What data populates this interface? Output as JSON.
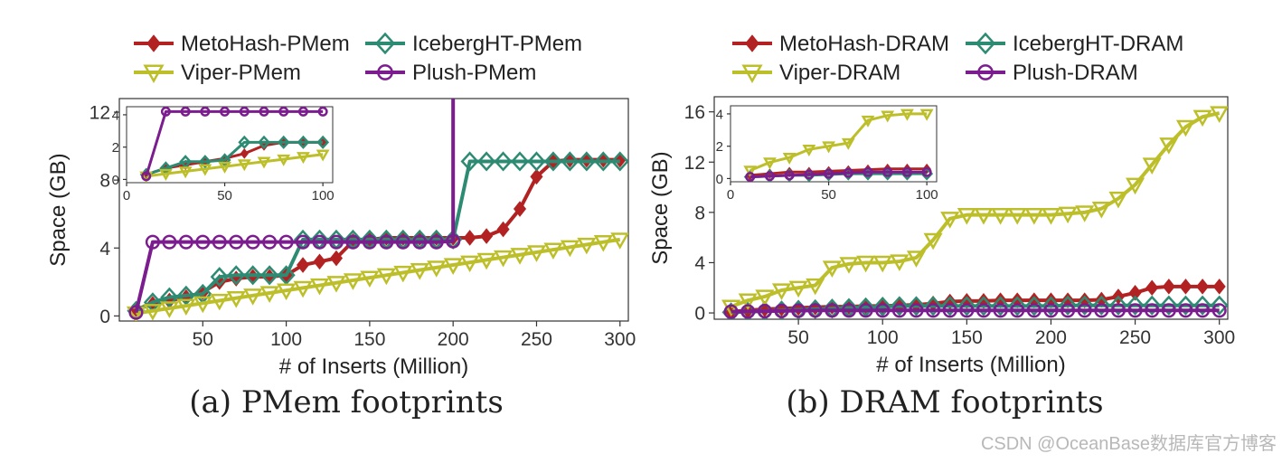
{
  "colors": {
    "meto": "#b22222",
    "iceberg": "#2e8b73",
    "viper": "#bdbf2a",
    "plush": "#7b1d8e"
  },
  "watermark": "CSDN @OceanBase数据库官方博客",
  "chart_data": [
    {
      "type": "line",
      "caption": "(a) PMem footprints",
      "xlabel": "# of Inserts (Million)",
      "ylabel": "Space (GB)",
      "xlim": [
        0,
        305
      ],
      "ylim": [
        -0.3,
        12.8
      ],
      "xticks": [
        50,
        100,
        150,
        200,
        250,
        300
      ],
      "yticks": [
        0,
        4,
        8,
        12
      ],
      "legend": "top",
      "x": [
        10,
        20,
        30,
        40,
        50,
        60,
        70,
        80,
        90,
        100,
        110,
        120,
        130,
        140,
        150,
        160,
        170,
        180,
        190,
        200,
        210,
        220,
        230,
        240,
        250,
        260,
        270,
        280,
        290,
        300
      ],
      "series": [
        {
          "name": "MetoHash-PMem",
          "marker": "diamond",
          "key": "meto",
          "values": [
            0.4,
            0.7,
            0.9,
            1.1,
            1.4,
            2.0,
            2.2,
            2.3,
            2.3,
            2.4,
            3.0,
            3.2,
            3.4,
            4.4,
            4.5,
            4.6,
            4.6,
            4.6,
            4.6,
            4.6,
            4.6,
            4.7,
            5.1,
            6.3,
            8.2,
            9.1,
            9.2,
            9.2,
            9.2,
            9.2
          ]
        },
        {
          "name": "IcebergHT-PMem",
          "marker": "diamond-open",
          "key": "iceberg",
          "values": [
            0.3,
            0.8,
            1.1,
            1.2,
            1.3,
            2.3,
            2.4,
            2.4,
            2.4,
            2.4,
            4.5,
            4.5,
            4.5,
            4.5,
            4.5,
            4.5,
            4.5,
            4.5,
            4.5,
            4.5,
            9.1,
            9.1,
            9.1,
            9.1,
            9.1,
            9.1,
            9.1,
            9.1,
            9.1,
            9.1
          ]
        },
        {
          "name": "Viper-PMem",
          "marker": "triangle-down",
          "key": "viper",
          "values": [
            0.15,
            0.3,
            0.45,
            0.6,
            0.75,
            0.9,
            1.05,
            1.2,
            1.35,
            1.5,
            1.65,
            1.8,
            1.95,
            2.1,
            2.25,
            2.4,
            2.55,
            2.7,
            2.85,
            3.0,
            3.15,
            3.3,
            3.45,
            3.6,
            3.75,
            3.9,
            4.05,
            4.2,
            4.35,
            4.5
          ]
        },
        {
          "name": "Plush-PMem",
          "marker": "circle-open",
          "key": "plush",
          "values": [
            0.2,
            4.35,
            4.35,
            4.35,
            4.35,
            4.35,
            4.35,
            4.35,
            4.35,
            4.35,
            4.35,
            4.35,
            4.35,
            4.35,
            4.35,
            4.35,
            4.35,
            4.35,
            4.35,
            4.4,
            null,
            null,
            null,
            null,
            null,
            null,
            null,
            null,
            null,
            null
          ],
          "spike": {
            "x": 200,
            "to": 13.5
          }
        }
      ],
      "inset": {
        "xlim": [
          0,
          105
        ],
        "ylim": [
          -0.2,
          4.5
        ],
        "xticks": [
          0,
          50,
          100
        ],
        "yticks": [
          0,
          2,
          4
        ],
        "x": [
          10,
          20,
          30,
          40,
          50,
          60,
          70,
          80,
          90,
          100
        ],
        "series": [
          {
            "key": "meto",
            "marker": "diamond",
            "values": [
              0.3,
              0.7,
              0.9,
              1.1,
              1.3,
              1.6,
              2.1,
              2.3,
              2.3,
              2.3
            ]
          },
          {
            "key": "iceberg",
            "marker": "diamond-open",
            "values": [
              0.3,
              0.7,
              1.1,
              1.1,
              1.2,
              2.3,
              2.3,
              2.3,
              2.3,
              2.3
            ]
          },
          {
            "key": "viper",
            "marker": "triangle-down",
            "values": [
              0.2,
              0.35,
              0.5,
              0.65,
              0.8,
              0.95,
              1.1,
              1.25,
              1.4,
              1.55
            ]
          },
          {
            "key": "plush",
            "marker": "circle-open",
            "values": [
              0.2,
              4.2,
              4.2,
              4.2,
              4.2,
              4.2,
              4.2,
              4.2,
              4.2,
              4.2
            ]
          }
        ]
      }
    },
    {
      "type": "line",
      "caption": "(b) DRAM footprints",
      "xlabel": "# of Inserts (Million)",
      "ylabel": "Space (GB)",
      "xlim": [
        0,
        305
      ],
      "ylim": [
        -0.5,
        17.2
      ],
      "xticks": [
        50,
        100,
        150,
        200,
        250,
        300
      ],
      "yticks": [
        0,
        4,
        8,
        12,
        16
      ],
      "legend": "top",
      "x": [
        10,
        20,
        30,
        40,
        50,
        60,
        70,
        80,
        90,
        100,
        110,
        120,
        130,
        140,
        150,
        160,
        170,
        180,
        190,
        200,
        210,
        220,
        230,
        240,
        250,
        260,
        270,
        280,
        290,
        300
      ],
      "series": [
        {
          "name": "MetoHash-DRAM",
          "marker": "diamond",
          "key": "meto",
          "values": [
            0.1,
            0.2,
            0.3,
            0.35,
            0.4,
            0.45,
            0.5,
            0.5,
            0.55,
            0.55,
            0.6,
            0.65,
            0.75,
            0.9,
            0.95,
            0.95,
            1.0,
            1.0,
            1.0,
            1.0,
            1.0,
            1.0,
            1.05,
            1.3,
            1.6,
            2.0,
            2.1,
            2.1,
            2.1,
            2.1
          ]
        },
        {
          "name": "IcebergHT-DRAM",
          "marker": "diamond-open",
          "key": "iceberg",
          "values": [
            0.05,
            0.1,
            0.15,
            0.2,
            0.25,
            0.3,
            0.35,
            0.4,
            0.45,
            0.5,
            0.55,
            0.55,
            0.55,
            0.55,
            0.55,
            0.55,
            0.55,
            0.55,
            0.55,
            0.55,
            0.6,
            0.6,
            0.6,
            0.6,
            0.6,
            0.6,
            0.6,
            0.6,
            0.6,
            0.6
          ]
        },
        {
          "name": "Viper-DRAM",
          "marker": "triangle-down",
          "key": "viper",
          "values": [
            0.5,
            1.0,
            1.3,
            1.8,
            2.0,
            2.2,
            3.6,
            3.9,
            4.0,
            4.0,
            4.1,
            4.4,
            5.8,
            7.5,
            7.8,
            7.8,
            7.8,
            7.8,
            7.8,
            7.8,
            7.9,
            8.0,
            8.3,
            9.1,
            10.2,
            11.8,
            13.4,
            14.8,
            15.6,
            15.9
          ]
        },
        {
          "name": "Plush-DRAM",
          "marker": "circle-open",
          "key": "plush",
          "values": [
            0.1,
            0.12,
            0.14,
            0.16,
            0.18,
            0.2,
            0.2,
            0.2,
            0.2,
            0.2,
            0.2,
            0.2,
            0.2,
            0.2,
            0.2,
            0.2,
            0.2,
            0.2,
            0.2,
            0.2,
            0.2,
            0.2,
            0.2,
            0.2,
            0.2,
            0.2,
            0.2,
            0.2,
            0.2,
            0.2
          ]
        }
      ],
      "inset": {
        "xlim": [
          0,
          105
        ],
        "ylim": [
          -0.2,
          4.5
        ],
        "xticks": [
          0,
          50,
          100
        ],
        "yticks": [
          0,
          2,
          4
        ],
        "x": [
          10,
          20,
          30,
          40,
          50,
          60,
          70,
          80,
          90,
          100
        ],
        "series": [
          {
            "key": "meto",
            "marker": "diamond",
            "values": [
              0.2,
              0.3,
              0.4,
              0.4,
              0.45,
              0.5,
              0.55,
              0.6,
              0.6,
              0.6
            ]
          },
          {
            "key": "iceberg",
            "marker": "diamond-open",
            "values": [
              0.1,
              0.15,
              0.2,
              0.2,
              0.25,
              0.3,
              0.3,
              0.3,
              0.3,
              0.3
            ]
          },
          {
            "key": "viper",
            "marker": "triangle-down",
            "values": [
              0.5,
              1.0,
              1.3,
              1.8,
              2.0,
              2.2,
              3.6,
              3.9,
              4.0,
              4.0
            ]
          },
          {
            "key": "plush",
            "marker": "circle-open",
            "values": [
              0.1,
              0.15,
              0.2,
              0.25,
              0.3,
              0.35,
              0.4,
              0.4,
              0.4,
              0.4
            ]
          }
        ]
      }
    }
  ]
}
